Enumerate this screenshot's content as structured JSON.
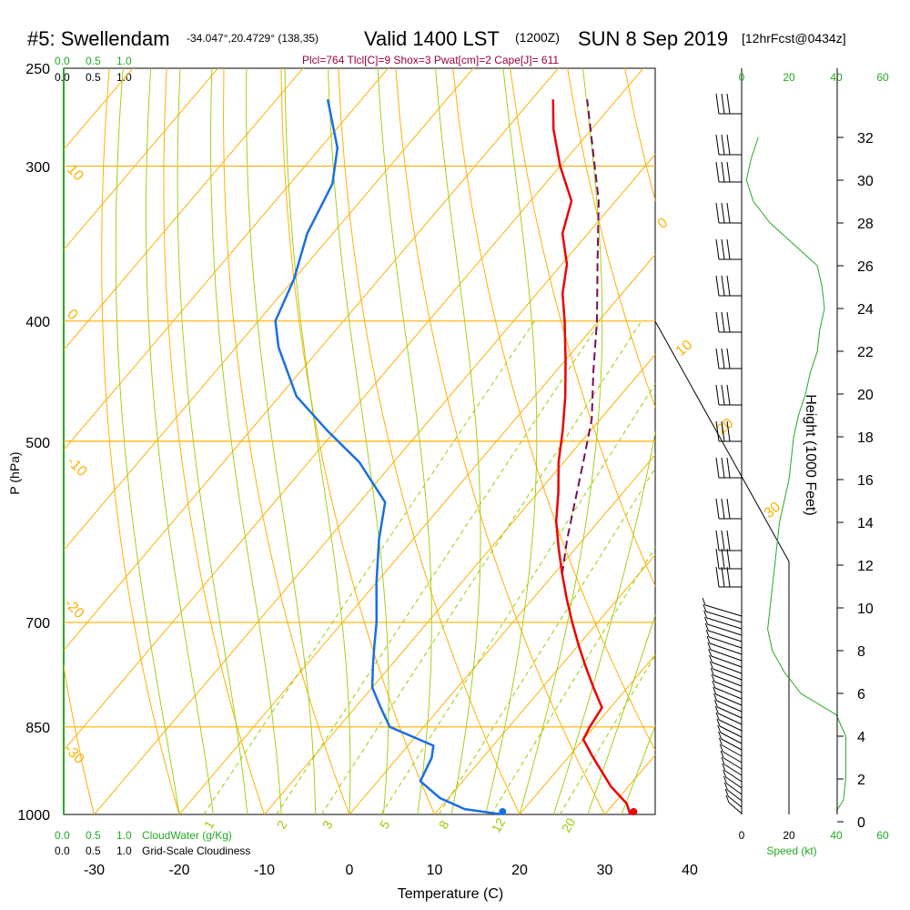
{
  "title": {
    "station": "#5: Swellendam",
    "location": "-34.047°,20.4729° (138,35)",
    "valid": "Valid 1400 LST",
    "utc": "(1200Z)",
    "date": "SUN 8 Sep 2019",
    "forecast": "[12hrFcst@0434z]"
  },
  "params_line": "Plcl=764 Tlcl[C]=9 Shox=3 Pwat[cm]=2 Cape[J]= 611",
  "cloud_scales": {
    "cloudwater_values": [
      "0.0",
      "0.5",
      "1.0"
    ],
    "cloudiness_values": [
      "0.0",
      "0.5",
      "1.0"
    ],
    "cloudwater_label": "CloudWater (g/Kg)",
    "cloudiness_label": "Grid-Scale Cloudiness"
  },
  "speed_axis": {
    "label": "Speed (kt)",
    "top_ticks": [
      "0",
      "20",
      "40",
      "60"
    ],
    "bottom_ticks": [
      "0",
      "20",
      "40",
      "60"
    ]
  },
  "colors": {
    "isotherm": "#ffb000",
    "adiabat": "#99cc00",
    "temperature": "#ee0000",
    "dewpoint": "#1a6fe0",
    "parcel": "#7a0a5a",
    "speed": "#22aa22",
    "params": "#990044"
  },
  "chart_data": {
    "type": "line",
    "subtype": "skew-T log-P sounding",
    "xlabel": "Temperature (C)",
    "ylabel": "P (hPa)",
    "y2label": "Height (1000 Feet)",
    "x_ticks": [
      "-30",
      "-20",
      "-10",
      "0",
      "10",
      "20",
      "30",
      "40"
    ],
    "y_ticks": [
      "250",
      "300",
      "400",
      "500",
      "700",
      "850",
      "1000"
    ],
    "y2_ticks": [
      "0",
      "2",
      "4",
      "6",
      "8",
      "10",
      "12",
      "14",
      "16",
      "18",
      "20",
      "22",
      "24",
      "26",
      "28",
      "30",
      "32"
    ],
    "xlim": [
      -34,
      36
    ],
    "ylim": [
      1000,
      250
    ],
    "y2lim": [
      0,
      33
    ],
    "isotherm_labels": [
      "10",
      "0",
      "-10",
      "-20",
      "-30",
      "0",
      "10",
      "20",
      "30"
    ],
    "mixing_ratio_labels": [
      "1",
      "2",
      "3",
      "5",
      "8",
      "12",
      "20"
    ],
    "series": [
      {
        "name": "Temperature",
        "pressure": [
          1000,
          980,
          950,
          900,
          870,
          850,
          820,
          790,
          760,
          730,
          700,
          670,
          640,
          610,
          580,
          550,
          520,
          490,
          460,
          430,
          400,
          380,
          360,
          340,
          320,
          300,
          280,
          265
        ],
        "temperature": [
          33,
          31.5,
          28,
          23,
          20,
          19.5,
          19,
          16,
          13,
          10,
          7,
          4,
          1,
          -2,
          -5,
          -7.6,
          -10.6,
          -13.3,
          -16.4,
          -20,
          -24,
          -27,
          -29.4,
          -33,
          -35.2,
          -40,
          -44.5,
          -47.5
        ]
      },
      {
        "name": "Dewpoint",
        "pressure": [
          1000,
          990,
          970,
          940,
          900,
          880,
          850,
          820,
          790,
          760,
          730,
          700,
          650,
          600,
          560,
          520,
          490,
          460,
          420,
          400,
          370,
          340,
          310,
          290,
          265
        ],
        "temperature": [
          18,
          13,
          9,
          5,
          4,
          3,
          -4,
          -7,
          -10,
          -12,
          -14,
          -16,
          -20,
          -24,
          -27,
          -34,
          -41,
          -48,
          -55,
          -58,
          -60,
          -63,
          -65,
          -68,
          -74
        ]
      },
      {
        "name": "Parcel",
        "pressure": [
          640,
          600,
          560,
          520,
          480,
          440,
          400,
          360,
          320,
          290,
          265
        ],
        "temperature": [
          1,
          -1.9,
          -4.7,
          -7.7,
          -11,
          -15.5,
          -20.2,
          -25.8,
          -32,
          -38,
          -43.5
        ]
      }
    ],
    "surface_points": [
      {
        "name": "Surface temperature",
        "pressure": 1000,
        "temperature": 33.4
      },
      {
        "name": "Surface dewpoint",
        "pressure": 1000,
        "temperature": 18
      }
    ],
    "wind_speed": {
      "height_kft": [
        0.5,
        1,
        2,
        3,
        4,
        5,
        6,
        7,
        8,
        9,
        10,
        11,
        12,
        13,
        14,
        15,
        16,
        17,
        18,
        19,
        20,
        21,
        22,
        23,
        24,
        25,
        26,
        27,
        28,
        29,
        30,
        31,
        32
      ],
      "speed_kt": [
        40,
        43,
        44,
        44,
        44,
        40,
        25,
        18,
        13,
        11,
        12,
        13,
        14,
        15,
        16,
        18,
        20,
        21,
        22,
        24,
        27,
        29,
        32,
        33,
        35,
        34,
        32,
        22,
        12,
        5,
        2,
        4,
        7
      ]
    }
  }
}
